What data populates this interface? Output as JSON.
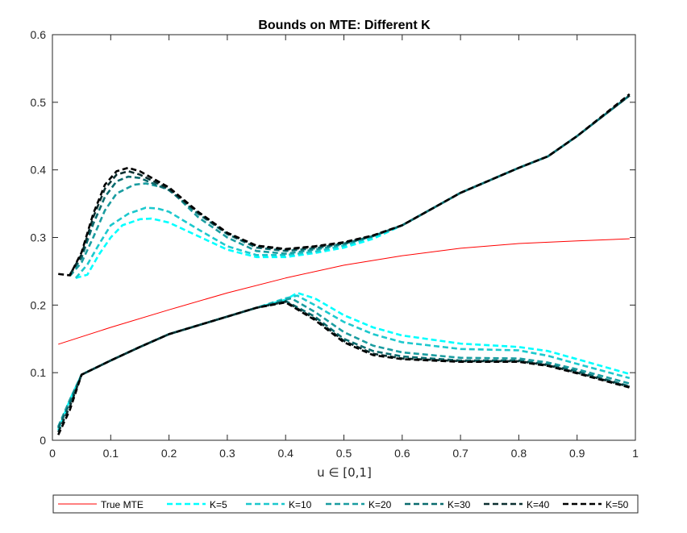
{
  "chart_data": {
    "type": "line",
    "title": "Bounds on MTE: Different K",
    "xlabel": "u ∈ [0,1]",
    "ylabel": "",
    "xlim": [
      0,
      1
    ],
    "ylim": [
      0,
      0.6
    ],
    "xticks": [
      0,
      0.1,
      0.2,
      0.3,
      0.4,
      0.5,
      0.6,
      0.7,
      0.8,
      0.9,
      1
    ],
    "xtick_labels": [
      "0",
      "0.1",
      "0.2",
      "0.3",
      "0.4",
      "0.5",
      "0.6",
      "0.7",
      "0.8",
      "0.9",
      "1"
    ],
    "yticks": [
      0,
      0.1,
      0.2,
      0.3,
      0.4,
      0.5,
      0.6
    ],
    "ytick_labels": [
      "0",
      "0.1",
      "0.2",
      "0.3",
      "0.4",
      "0.5",
      "0.6"
    ],
    "legend_position": "bottom-outside",
    "series": [
      {
        "name": "True MTE",
        "color": "#ff0000",
        "style": "solid",
        "curves": [
          [
            [
              0.01,
              0.142
            ],
            [
              0.1,
              0.167
            ],
            [
              0.2,
              0.193
            ],
            [
              0.3,
              0.218
            ],
            [
              0.4,
              0.24
            ],
            [
              0.5,
              0.259
            ],
            [
              0.6,
              0.273
            ],
            [
              0.7,
              0.284
            ],
            [
              0.8,
              0.291
            ],
            [
              0.9,
              0.295
            ],
            [
              0.99,
              0.298
            ]
          ]
        ]
      },
      {
        "name": "K=5",
        "color": "#00ffff",
        "style": "dashed",
        "curves": [
          [
            [
              0.04,
              0.24
            ],
            [
              0.06,
              0.245
            ],
            [
              0.08,
              0.275
            ],
            [
              0.1,
              0.3
            ],
            [
              0.12,
              0.318
            ],
            [
              0.15,
              0.327
            ],
            [
              0.17,
              0.328
            ],
            [
              0.2,
              0.322
            ],
            [
              0.25,
              0.302
            ],
            [
              0.3,
              0.282
            ],
            [
              0.35,
              0.271
            ],
            [
              0.4,
              0.271
            ],
            [
              0.45,
              0.277
            ],
            [
              0.5,
              0.285
            ],
            [
              0.55,
              0.298
            ],
            [
              0.6,
              0.318
            ],
            [
              0.7,
              0.366
            ],
            [
              0.8,
              0.403
            ],
            [
              0.85,
              0.42
            ],
            [
              0.9,
              0.45
            ],
            [
              0.99,
              0.51
            ]
          ],
          [
            [
              0.01,
              0.015
            ],
            [
              0.03,
              0.06
            ],
            [
              0.05,
              0.097
            ],
            [
              0.1,
              0.118
            ],
            [
              0.15,
              0.138
            ],
            [
              0.2,
              0.157
            ],
            [
              0.25,
              0.17
            ],
            [
              0.3,
              0.183
            ],
            [
              0.35,
              0.196
            ],
            [
              0.4,
              0.208
            ],
            [
              0.42,
              0.218
            ],
            [
              0.45,
              0.21
            ],
            [
              0.5,
              0.185
            ],
            [
              0.55,
              0.167
            ],
            [
              0.6,
              0.155
            ],
            [
              0.7,
              0.143
            ],
            [
              0.8,
              0.138
            ],
            [
              0.85,
              0.132
            ],
            [
              0.9,
              0.12
            ],
            [
              0.99,
              0.098
            ]
          ]
        ]
      },
      {
        "name": "K=10",
        "color": "#1cc8cd",
        "style": "dashed",
        "curves": [
          [
            [
              0.04,
              0.24
            ],
            [
              0.06,
              0.26
            ],
            [
              0.08,
              0.29
            ],
            [
              0.1,
              0.318
            ],
            [
              0.13,
              0.335
            ],
            [
              0.16,
              0.344
            ],
            [
              0.18,
              0.343
            ],
            [
              0.2,
              0.338
            ],
            [
              0.25,
              0.312
            ],
            [
              0.3,
              0.287
            ],
            [
              0.35,
              0.274
            ],
            [
              0.4,
              0.274
            ],
            [
              0.45,
              0.279
            ],
            [
              0.5,
              0.288
            ],
            [
              0.55,
              0.301
            ],
            [
              0.6,
              0.318
            ],
            [
              0.7,
              0.366
            ],
            [
              0.8,
              0.403
            ],
            [
              0.85,
              0.42
            ],
            [
              0.9,
              0.45
            ],
            [
              0.99,
              0.51
            ]
          ],
          [
            [
              0.01,
              0.02
            ],
            [
              0.03,
              0.06
            ],
            [
              0.05,
              0.097
            ],
            [
              0.1,
              0.118
            ],
            [
              0.15,
              0.138
            ],
            [
              0.2,
              0.157
            ],
            [
              0.25,
              0.17
            ],
            [
              0.3,
              0.183
            ],
            [
              0.35,
              0.196
            ],
            [
              0.4,
              0.21
            ],
            [
              0.42,
              0.214
            ],
            [
              0.45,
              0.2
            ],
            [
              0.5,
              0.175
            ],
            [
              0.55,
              0.157
            ],
            [
              0.6,
              0.145
            ],
            [
              0.7,
              0.135
            ],
            [
              0.8,
              0.133
            ],
            [
              0.85,
              0.125
            ],
            [
              0.9,
              0.113
            ],
            [
              0.99,
              0.092
            ]
          ]
        ]
      },
      {
        "name": "K=20",
        "color": "#1a9ca0",
        "style": "dashed",
        "curves": [
          [
            [
              0.03,
              0.243
            ],
            [
              0.05,
              0.263
            ],
            [
              0.07,
              0.3
            ],
            [
              0.09,
              0.34
            ],
            [
              0.11,
              0.365
            ],
            [
              0.14,
              0.378
            ],
            [
              0.16,
              0.38
            ],
            [
              0.2,
              0.372
            ],
            [
              0.25,
              0.33
            ],
            [
              0.3,
              0.3
            ],
            [
              0.35,
              0.28
            ],
            [
              0.4,
              0.276
            ],
            [
              0.45,
              0.282
            ],
            [
              0.5,
              0.29
            ],
            [
              0.55,
              0.302
            ],
            [
              0.6,
              0.318
            ],
            [
              0.7,
              0.366
            ],
            [
              0.8,
              0.403
            ],
            [
              0.85,
              0.42
            ],
            [
              0.9,
              0.45
            ],
            [
              0.99,
              0.51
            ]
          ],
          [
            [
              0.01,
              0.02
            ],
            [
              0.03,
              0.06
            ],
            [
              0.05,
              0.097
            ],
            [
              0.1,
              0.118
            ],
            [
              0.15,
              0.138
            ],
            [
              0.2,
              0.157
            ],
            [
              0.25,
              0.17
            ],
            [
              0.3,
              0.183
            ],
            [
              0.35,
              0.196
            ],
            [
              0.4,
              0.208
            ],
            [
              0.41,
              0.21
            ],
            [
              0.45,
              0.19
            ],
            [
              0.5,
              0.16
            ],
            [
              0.55,
              0.14
            ],
            [
              0.6,
              0.13
            ],
            [
              0.7,
              0.122
            ],
            [
              0.8,
              0.121
            ],
            [
              0.85,
              0.115
            ],
            [
              0.9,
              0.105
            ],
            [
              0.99,
              0.084
            ]
          ]
        ]
      },
      {
        "name": "K=30",
        "color": "#0a6b6e",
        "style": "dashed",
        "curves": [
          [
            [
              0.03,
              0.245
            ],
            [
              0.05,
              0.27
            ],
            [
              0.07,
              0.32
            ],
            [
              0.09,
              0.36
            ],
            [
              0.11,
              0.383
            ],
            [
              0.13,
              0.39
            ],
            [
              0.15,
              0.388
            ],
            [
              0.2,
              0.37
            ],
            [
              0.25,
              0.335
            ],
            [
              0.3,
              0.305
            ],
            [
              0.35,
              0.285
            ],
            [
              0.4,
              0.28
            ],
            [
              0.45,
              0.284
            ],
            [
              0.5,
              0.291
            ],
            [
              0.55,
              0.302
            ],
            [
              0.6,
              0.318
            ],
            [
              0.7,
              0.366
            ],
            [
              0.8,
              0.403
            ],
            [
              0.85,
              0.42
            ],
            [
              0.9,
              0.45
            ],
            [
              0.99,
              0.51
            ]
          ],
          [
            [
              0.01,
              0.018
            ],
            [
              0.03,
              0.055
            ],
            [
              0.05,
              0.097
            ],
            [
              0.1,
              0.118
            ],
            [
              0.15,
              0.138
            ],
            [
              0.2,
              0.157
            ],
            [
              0.25,
              0.17
            ],
            [
              0.3,
              0.183
            ],
            [
              0.35,
              0.196
            ],
            [
              0.4,
              0.206
            ],
            [
              0.45,
              0.183
            ],
            [
              0.5,
              0.15
            ],
            [
              0.55,
              0.132
            ],
            [
              0.6,
              0.124
            ],
            [
              0.7,
              0.118
            ],
            [
              0.8,
              0.118
            ],
            [
              0.85,
              0.112
            ],
            [
              0.9,
              0.102
            ],
            [
              0.99,
              0.08
            ]
          ]
        ]
      },
      {
        "name": "K=40",
        "color": "#0c2f30",
        "style": "dashed",
        "curves": [
          [
            [
              0.03,
              0.245
            ],
            [
              0.05,
              0.275
            ],
            [
              0.07,
              0.33
            ],
            [
              0.09,
              0.372
            ],
            [
              0.11,
              0.393
            ],
            [
              0.13,
              0.398
            ],
            [
              0.15,
              0.393
            ],
            [
              0.2,
              0.372
            ],
            [
              0.25,
              0.337
            ],
            [
              0.3,
              0.306
            ],
            [
              0.35,
              0.287
            ],
            [
              0.4,
              0.282
            ],
            [
              0.45,
              0.286
            ],
            [
              0.5,
              0.292
            ],
            [
              0.55,
              0.303
            ],
            [
              0.6,
              0.318
            ],
            [
              0.7,
              0.366
            ],
            [
              0.8,
              0.403
            ],
            [
              0.85,
              0.42
            ],
            [
              0.9,
              0.45
            ],
            [
              0.99,
              0.51
            ]
          ],
          [
            [
              0.01,
              0.012
            ],
            [
              0.03,
              0.05
            ],
            [
              0.05,
              0.097
            ],
            [
              0.1,
              0.118
            ],
            [
              0.15,
              0.138
            ],
            [
              0.2,
              0.157
            ],
            [
              0.25,
              0.17
            ],
            [
              0.3,
              0.183
            ],
            [
              0.35,
              0.196
            ],
            [
              0.4,
              0.205
            ],
            [
              0.45,
              0.18
            ],
            [
              0.5,
              0.147
            ],
            [
              0.55,
              0.128
            ],
            [
              0.6,
              0.121
            ],
            [
              0.7,
              0.117
            ],
            [
              0.8,
              0.117
            ],
            [
              0.85,
              0.111
            ],
            [
              0.9,
              0.1
            ],
            [
              0.99,
              0.079
            ]
          ]
        ]
      },
      {
        "name": "K=50",
        "color": "#000000",
        "style": "dashed",
        "curves": [
          [
            [
              0.01,
              0.246
            ],
            [
              0.03,
              0.244
            ],
            [
              0.05,
              0.278
            ],
            [
              0.07,
              0.335
            ],
            [
              0.09,
              0.378
            ],
            [
              0.11,
              0.398
            ],
            [
              0.13,
              0.403
            ],
            [
              0.15,
              0.398
            ],
            [
              0.2,
              0.374
            ],
            [
              0.25,
              0.338
            ],
            [
              0.3,
              0.307
            ],
            [
              0.35,
              0.288
            ],
            [
              0.4,
              0.283
            ],
            [
              0.45,
              0.287
            ],
            [
              0.5,
              0.293
            ],
            [
              0.55,
              0.303
            ],
            [
              0.6,
              0.318
            ],
            [
              0.7,
              0.366
            ],
            [
              0.8,
              0.403
            ],
            [
              0.85,
              0.42
            ],
            [
              0.9,
              0.45
            ],
            [
              0.99,
              0.512
            ]
          ],
          [
            [
              0.01,
              0.008
            ],
            [
              0.03,
              0.045
            ],
            [
              0.05,
              0.097
            ],
            [
              0.1,
              0.118
            ],
            [
              0.15,
              0.138
            ],
            [
              0.2,
              0.157
            ],
            [
              0.25,
              0.17
            ],
            [
              0.3,
              0.183
            ],
            [
              0.35,
              0.196
            ],
            [
              0.4,
              0.204
            ],
            [
              0.45,
              0.178
            ],
            [
              0.5,
              0.145
            ],
            [
              0.55,
              0.126
            ],
            [
              0.6,
              0.12
            ],
            [
              0.7,
              0.116
            ],
            [
              0.8,
              0.116
            ],
            [
              0.85,
              0.11
            ],
            [
              0.9,
              0.099
            ],
            [
              0.99,
              0.078
            ]
          ]
        ]
      }
    ]
  }
}
